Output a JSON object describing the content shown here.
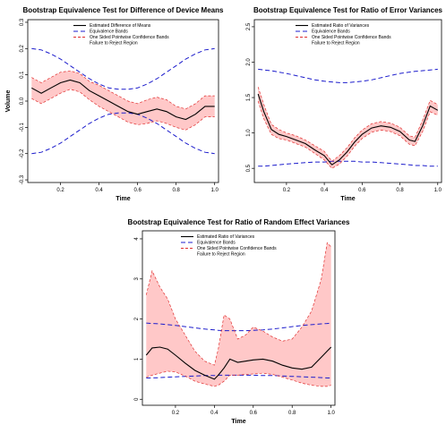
{
  "colors": {
    "estimate": "#000000",
    "equivalence": "#1c1ccc",
    "confidence": "#e03030",
    "reject_fill": "#ffc8c8"
  },
  "chart_data": [
    {
      "type": "line",
      "title": "Bootstrap Equivalence Test for Difference of Device Means",
      "xlabel": "Time",
      "ylabel": "Volume",
      "xlim": [
        0.03,
        1.02
      ],
      "ylim": [
        -0.31,
        0.31
      ],
      "xticks": [
        "0.2",
        "0.4",
        "0.6",
        "0.8",
        "1.0"
      ],
      "xtick_values": [
        0.2,
        0.4,
        0.6,
        0.8,
        1.0
      ],
      "yticks": [
        "-0.3",
        "-0.2",
        "-0.1",
        "0.0",
        "0.1",
        "0.2",
        "0.3"
      ],
      "ytick_values": [
        -0.3,
        -0.2,
        -0.1,
        0.0,
        0.1,
        0.2,
        0.3
      ],
      "legend": [
        "Estimated Difference of Means",
        "Equivalence Bands",
        "One Sided Pointwise Confidence Bands",
        "Failure to Reject Region"
      ],
      "legend_position": "top-right",
      "x": [
        0.05,
        0.1,
        0.15,
        0.2,
        0.25,
        0.3,
        0.35,
        0.4,
        0.45,
        0.5,
        0.55,
        0.6,
        0.65,
        0.7,
        0.75,
        0.8,
        0.85,
        0.9,
        0.95,
        1.0
      ],
      "series": [
        {
          "name": "Estimated Difference of Means",
          "values": [
            0.05,
            0.03,
            0.05,
            0.07,
            0.08,
            0.07,
            0.04,
            0.02,
            0.0,
            -0.02,
            -0.04,
            -0.05,
            -0.04,
            -0.03,
            -0.04,
            -0.06,
            -0.07,
            -0.05,
            -0.02,
            -0.02
          ]
        },
        {
          "name": "Lower confidence band",
          "values": [
            0.01,
            -0.01,
            0.01,
            0.03,
            0.045,
            0.035,
            0.005,
            -0.02,
            -0.04,
            -0.06,
            -0.08,
            -0.09,
            -0.085,
            -0.075,
            -0.085,
            -0.1,
            -0.11,
            -0.09,
            -0.06,
            -0.06
          ]
        },
        {
          "name": "Upper confidence band",
          "values": [
            0.09,
            0.07,
            0.09,
            0.11,
            0.115,
            0.105,
            0.075,
            0.06,
            0.04,
            0.02,
            0.0,
            -0.01,
            0.005,
            0.015,
            0.005,
            -0.02,
            -0.03,
            -0.01,
            0.02,
            0.02
          ]
        },
        {
          "name": "Upper equivalence band",
          "values": [
            0.2,
            0.195,
            0.18,
            0.16,
            0.135,
            0.11,
            0.085,
            0.065,
            0.05,
            0.045,
            0.045,
            0.05,
            0.065,
            0.085,
            0.11,
            0.135,
            0.16,
            0.18,
            0.195,
            0.2
          ]
        },
        {
          "name": "Lower equivalence band",
          "values": [
            -0.2,
            -0.195,
            -0.18,
            -0.16,
            -0.135,
            -0.11,
            -0.085,
            -0.065,
            -0.05,
            -0.045,
            -0.045,
            -0.05,
            -0.065,
            -0.085,
            -0.11,
            -0.135,
            -0.16,
            -0.18,
            -0.195,
            -0.2
          ]
        }
      ]
    },
    {
      "type": "line",
      "title": "Bootstrap Equivalence Test for Ratio of Error Variances",
      "xlabel": "Time",
      "ylabel": "",
      "xlim": [
        0.03,
        1.02
      ],
      "ylim": [
        0.3,
        2.6
      ],
      "xticks": [
        "0.2",
        "0.4",
        "0.6",
        "0.8",
        "1.0"
      ],
      "xtick_values": [
        0.2,
        0.4,
        0.6,
        0.8,
        1.0
      ],
      "yticks": [
        "0.5",
        "1.0",
        "1.5",
        "2.0",
        "2.5"
      ],
      "ytick_values": [
        0.5,
        1.0,
        1.5,
        2.0,
        2.5
      ],
      "legend": [
        "Estimated Ratio of Variances",
        "Equivalence Bands",
        "One Sided Pointwise Confidence Bands",
        "Failure to Reject Region"
      ],
      "legend_position": "top-right",
      "x": [
        0.05,
        0.08,
        0.12,
        0.16,
        0.2,
        0.25,
        0.3,
        0.35,
        0.4,
        0.44,
        0.48,
        0.52,
        0.56,
        0.6,
        0.65,
        0.7,
        0.75,
        0.8,
        0.85,
        0.88,
        0.92,
        0.96,
        1.0
      ],
      "series": [
        {
          "name": "Estimated Ratio of Variances",
          "values": [
            1.55,
            1.3,
            1.05,
            0.98,
            0.95,
            0.9,
            0.85,
            0.76,
            0.68,
            0.55,
            0.62,
            0.73,
            0.87,
            0.98,
            1.07,
            1.1,
            1.08,
            1.02,
            0.9,
            0.88,
            1.1,
            1.38,
            1.32
          ]
        },
        {
          "name": "Lower confidence band",
          "values": [
            1.45,
            1.2,
            0.98,
            0.92,
            0.9,
            0.85,
            0.8,
            0.71,
            0.62,
            0.5,
            0.56,
            0.67,
            0.81,
            0.92,
            1.01,
            1.04,
            1.02,
            0.96,
            0.84,
            0.82,
            1.02,
            1.3,
            1.25
          ]
        },
        {
          "name": "Upper confidence band",
          "values": [
            1.65,
            1.4,
            1.12,
            1.05,
            1.0,
            0.96,
            0.9,
            0.82,
            0.74,
            0.6,
            0.68,
            0.79,
            0.93,
            1.04,
            1.13,
            1.16,
            1.14,
            1.08,
            0.96,
            0.94,
            1.18,
            1.46,
            1.4
          ]
        },
        {
          "name": "Upper equivalence band",
          "values": [
            1.9,
            1.89,
            1.88,
            1.86,
            1.84,
            1.81,
            1.78,
            1.75,
            1.73,
            1.72,
            1.71,
            1.71,
            1.72,
            1.73,
            1.75,
            1.78,
            1.81,
            1.84,
            1.86,
            1.87,
            1.88,
            1.89,
            1.9
          ]
        },
        {
          "name": "Lower equivalence band",
          "values": [
            0.53,
            0.53,
            0.54,
            0.55,
            0.56,
            0.57,
            0.58,
            0.59,
            0.59,
            0.6,
            0.6,
            0.6,
            0.6,
            0.59,
            0.59,
            0.58,
            0.57,
            0.56,
            0.55,
            0.54,
            0.54,
            0.53,
            0.53
          ]
        }
      ]
    },
    {
      "type": "line",
      "title": "Bootstrap Equivalence Test for Ratio of Random Effect Variances",
      "xlabel": "Time",
      "ylabel": "",
      "xlim": [
        0.03,
        1.02
      ],
      "ylim": [
        -0.15,
        4.2
      ],
      "xticks": [
        "0.2",
        "0.4",
        "0.6",
        "0.8",
        "1.0"
      ],
      "xtick_values": [
        0.2,
        0.4,
        0.6,
        0.8,
        1.0
      ],
      "yticks": [
        "0",
        "1",
        "2",
        "3",
        "4"
      ],
      "ytick_values": [
        0,
        1,
        2,
        3,
        4
      ],
      "legend": [
        "Estimated Ratio of Variances",
        "Equivalence Bands",
        "One Sided Pointwise Confidence Bands",
        "Failure to Reject Region"
      ],
      "legend_position": "top-left",
      "x": [
        0.05,
        0.08,
        0.12,
        0.16,
        0.2,
        0.25,
        0.3,
        0.35,
        0.4,
        0.42,
        0.45,
        0.48,
        0.52,
        0.56,
        0.6,
        0.65,
        0.7,
        0.75,
        0.8,
        0.85,
        0.9,
        0.95,
        0.98,
        1.0
      ],
      "series": [
        {
          "name": "Estimated Ratio of Variances",
          "values": [
            1.1,
            1.28,
            1.3,
            1.25,
            1.1,
            0.9,
            0.72,
            0.6,
            0.5,
            0.6,
            0.78,
            1.0,
            0.92,
            0.95,
            0.98,
            1.0,
            0.95,
            0.85,
            0.78,
            0.75,
            0.8,
            1.05,
            1.2,
            1.3
          ]
        },
        {
          "name": "Lower confidence band",
          "values": [
            0.55,
            0.6,
            0.65,
            0.7,
            0.68,
            0.58,
            0.45,
            0.38,
            0.32,
            0.35,
            0.45,
            0.6,
            0.6,
            0.62,
            0.63,
            0.65,
            0.62,
            0.55,
            0.48,
            0.4,
            0.35,
            0.32,
            0.32,
            0.35
          ]
        },
        {
          "name": "Upper confidence band",
          "values": [
            2.6,
            3.2,
            2.8,
            2.5,
            2.0,
            1.6,
            1.2,
            0.95,
            0.85,
            1.25,
            2.1,
            2.0,
            1.5,
            1.6,
            1.8,
            1.7,
            1.55,
            1.45,
            1.5,
            1.8,
            2.2,
            3.0,
            3.9,
            3.8
          ]
        },
        {
          "name": "Upper equivalence band",
          "values": [
            1.9,
            1.89,
            1.88,
            1.86,
            1.84,
            1.81,
            1.78,
            1.75,
            1.73,
            1.72,
            1.71,
            1.71,
            1.71,
            1.71,
            1.72,
            1.73,
            1.75,
            1.78,
            1.81,
            1.84,
            1.86,
            1.88,
            1.89,
            1.9
          ]
        },
        {
          "name": "Lower equivalence band",
          "values": [
            0.53,
            0.53,
            0.54,
            0.55,
            0.56,
            0.57,
            0.58,
            0.59,
            0.59,
            0.6,
            0.6,
            0.6,
            0.6,
            0.6,
            0.6,
            0.59,
            0.59,
            0.58,
            0.57,
            0.56,
            0.55,
            0.54,
            0.53,
            0.53
          ]
        }
      ]
    }
  ]
}
